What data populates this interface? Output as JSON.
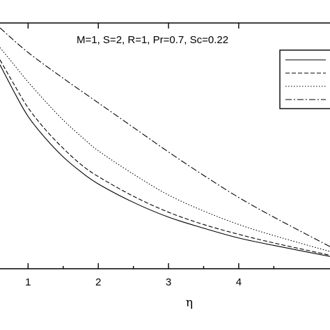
{
  "chart_data": {
    "type": "line",
    "title": "",
    "annotation": "M=1, S=2, R=1, Pr=0.7, Sc=0.22",
    "xlabel": "η",
    "ylabel": "",
    "xlim": [
      0.6,
      5.3
    ],
    "ylim": [
      0.0,
      1.0
    ],
    "x_ticks": [
      "1",
      "2",
      "3",
      "4"
    ],
    "grid": false,
    "legend_position": "top-right",
    "series": [
      {
        "style": "solid",
        "color": "#000000",
        "x": [
          0.6,
          0.8,
          1.0,
          1.25,
          1.5,
          1.75,
          2.0,
          2.5,
          3.0,
          3.5,
          4.0,
          4.5,
          5.3
        ],
        "y": [
          0.83,
          0.72,
          0.62,
          0.53,
          0.455,
          0.395,
          0.345,
          0.27,
          0.21,
          0.165,
          0.125,
          0.095,
          0.05
        ]
      },
      {
        "style": "dashed",
        "color": "#000000",
        "x": [
          0.6,
          0.8,
          1.0,
          1.25,
          1.5,
          1.75,
          2.0,
          2.5,
          3.0,
          3.5,
          4.0,
          4.5,
          5.3
        ],
        "y": [
          0.85,
          0.75,
          0.655,
          0.565,
          0.49,
          0.425,
          0.375,
          0.295,
          0.23,
          0.18,
          0.14,
          0.105,
          0.055
        ]
      },
      {
        "style": "dotted",
        "color": "#000000",
        "x": [
          0.6,
          0.8,
          1.0,
          1.25,
          1.5,
          1.75,
          2.0,
          2.5,
          3.0,
          3.5,
          4.0,
          4.5,
          5.3
        ],
        "y": [
          0.9,
          0.83,
          0.76,
          0.68,
          0.605,
          0.54,
          0.48,
          0.385,
          0.3,
          0.235,
          0.18,
          0.135,
          0.07
        ]
      },
      {
        "style": "dashdot",
        "color": "#000000",
        "x": [
          0.6,
          1.0,
          1.5,
          2.0,
          2.5,
          3.0,
          3.5,
          4.0,
          4.5,
          5.3
        ],
        "y": [
          0.98,
          0.88,
          0.775,
          0.675,
          0.575,
          0.475,
          0.38,
          0.29,
          0.21,
          0.09
        ]
      }
    ]
  }
}
